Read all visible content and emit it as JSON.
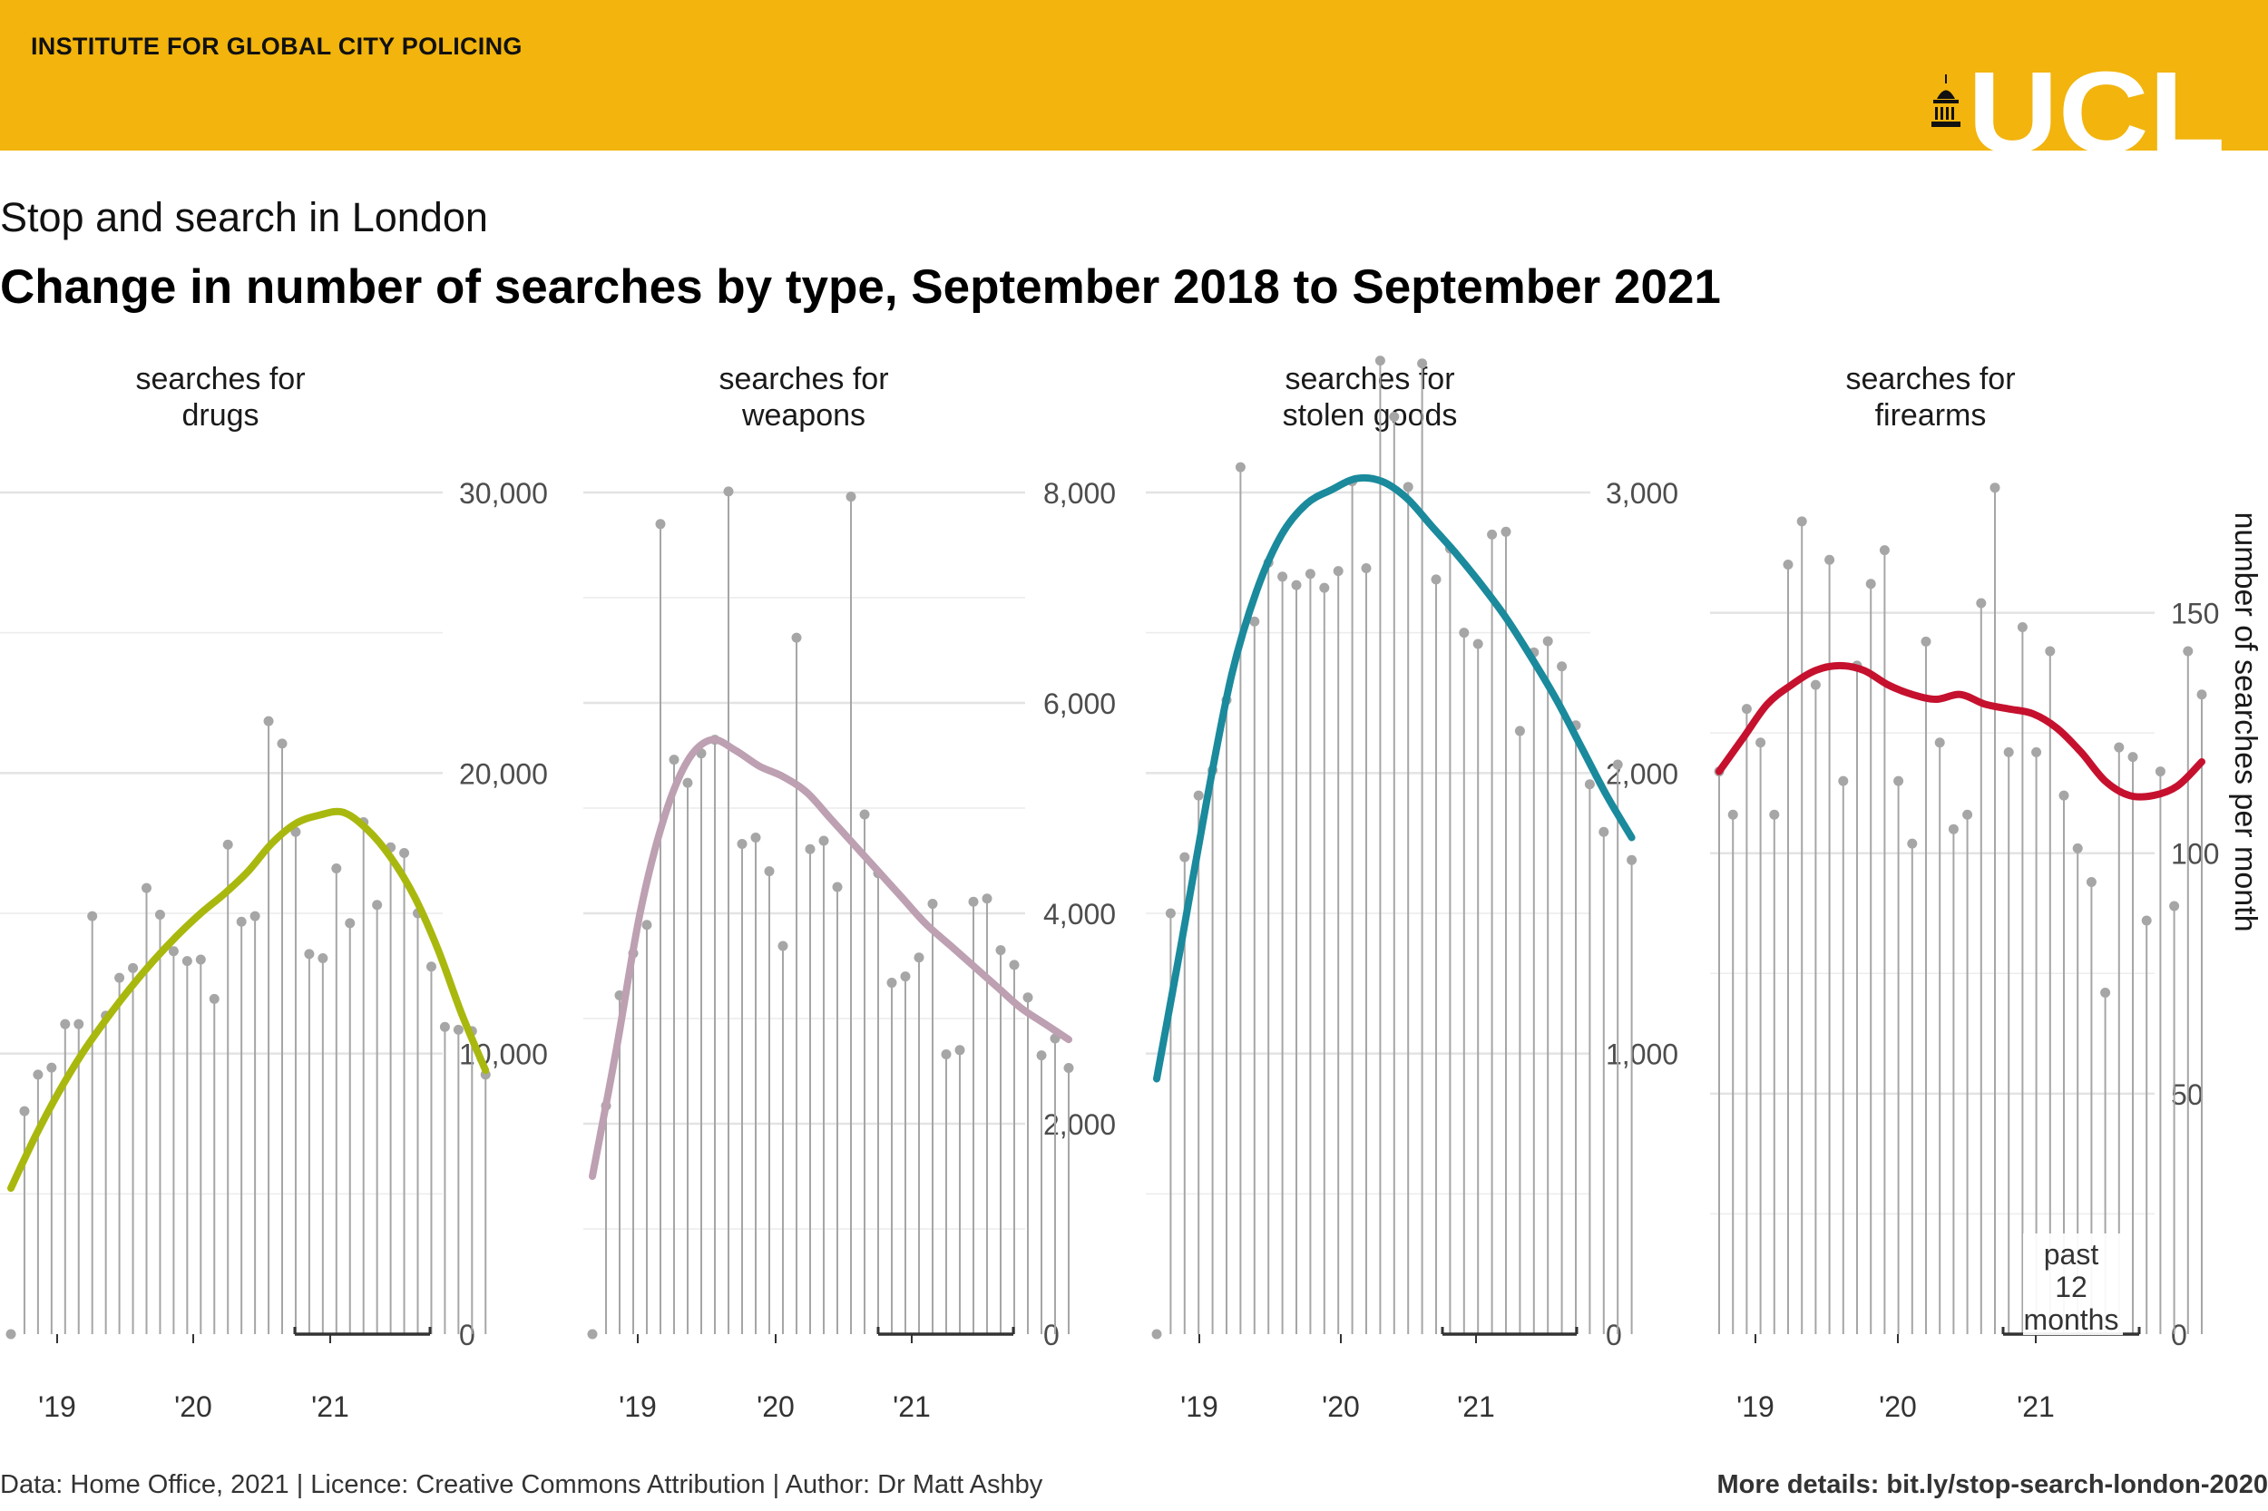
{
  "header": {
    "organisation": "INSTITUTE FOR GLOBAL CITY POLICING",
    "logo_text": "UCL",
    "band_color": "#f2b40d"
  },
  "subtitle": "Stop and search in London",
  "title": "Change in number of searches by type, September 2018 to September 2021",
  "chart_data": [
    {
      "type": "line",
      "panel_title": [
        "searches for",
        "drugs"
      ],
      "x_ticks": [
        "'19",
        "'20",
        "'21"
      ],
      "y_ticks": [
        "0",
        "10,000",
        "20,000",
        "30,000"
      ],
      "y_tick_values": [
        0,
        10000,
        20000,
        30000
      ],
      "ylim": [
        0,
        30000
      ],
      "y_grid_minor": [
        5000,
        15000,
        25000
      ],
      "monthly_values": [
        0,
        7950,
        9250,
        9500,
        11050,
        11050,
        14900,
        11350,
        12700,
        13050,
        15900,
        14950,
        13650,
        13300,
        13350,
        11950,
        17450,
        14700,
        14900,
        21850,
        21050,
        17900,
        13550,
        13400,
        16600,
        14650,
        18250,
        15300,
        17350,
        17150,
        15000,
        13100,
        10950,
        10850,
        10800,
        9250
      ],
      "trend": [
        5200,
        7000,
        8600,
        10000,
        11200,
        12300,
        13300,
        14200,
        15000,
        15700,
        16500,
        17500,
        18200,
        18500,
        18600,
        18000,
        17000,
        15600,
        13700,
        11400,
        9400
      ],
      "trend_color": "#a9b80e",
      "marker_color": "#a6a6a6"
    },
    {
      "type": "line",
      "panel_title": [
        "searches for",
        "weapons"
      ],
      "x_ticks": [
        "'19",
        "'20",
        "'21"
      ],
      "y_ticks": [
        "0",
        "2,000",
        "4,000",
        "6,000",
        "8,000"
      ],
      "y_tick_values": [
        0,
        2000,
        4000,
        6000,
        8000
      ],
      "ylim": [
        0,
        8000
      ],
      "y_grid_minor": [
        1000,
        3000,
        5000,
        7000
      ],
      "monthly_values": [
        0,
        2170,
        3220,
        3620,
        3890,
        7700,
        5460,
        5240,
        5520,
        5650,
        8010,
        4660,
        4720,
        4400,
        3690,
        6620,
        4610,
        4690,
        4250,
        7960,
        4940,
        4380,
        3340,
        3400,
        3580,
        4090,
        2660,
        2700,
        4110,
        4140,
        3650,
        3510,
        3200,
        2650,
        2810,
        2530
      ],
      "trend": [
        1500,
        2700,
        4000,
        4900,
        5450,
        5650,
        5550,
        5400,
        5300,
        5150,
        4900,
        4650,
        4400,
        4150,
        3900,
        3700,
        3500,
        3300,
        3100,
        2950,
        2800
      ],
      "trend_color": "#bda0b1",
      "marker_color": "#a6a6a6"
    },
    {
      "type": "line",
      "panel_title": [
        "searches for",
        "stolen goods"
      ],
      "x_ticks": [
        "'19",
        "'20",
        "'21"
      ],
      "y_ticks": [
        "0",
        "1,000",
        "2,000",
        "3,000"
      ],
      "y_tick_values": [
        0,
        1000,
        2000,
        3000
      ],
      "ylim": [
        0,
        3000
      ],
      "y_grid_minor": [
        500,
        1500,
        2500
      ],
      "monthly_values": [
        0,
        1500,
        1700,
        1920,
        2010,
        2260,
        3090,
        2540,
        2750,
        2700,
        2670,
        2710,
        2660,
        2720,
        3040,
        2730,
        3470,
        3270,
        3020,
        3460,
        2690,
        2800,
        2500,
        2460,
        2850,
        2860,
        2150,
        2430,
        2470,
        2380,
        2170,
        1960,
        1790,
        2030,
        1690
      ],
      "trend": [
        910,
        1400,
        1900,
        2350,
        2650,
        2850,
        2960,
        3010,
        3050,
        3040,
        2980,
        2880,
        2780,
        2670,
        2550,
        2410,
        2260,
        2090,
        1920,
        1770
      ],
      "trend_color": "#1a8a9c",
      "marker_color": "#a6a6a6"
    },
    {
      "type": "line",
      "panel_title": [
        "searches for",
        "firearms"
      ],
      "x_ticks": [
        "'19",
        "'20",
        "'21"
      ],
      "y_ticks": [
        "0",
        "50",
        "100",
        "150"
      ],
      "y_tick_values": [
        0,
        50,
        100,
        150
      ],
      "ylim": [
        0,
        175
      ],
      "y_grid_minor": [
        25,
        75,
        125
      ],
      "ylabel": "number of searches per month",
      "annotation": [
        "past",
        "12",
        "months"
      ],
      "monthly_values": [
        117,
        108,
        130,
        123,
        108,
        160,
        169,
        135,
        161,
        115,
        139,
        156,
        163,
        115,
        102,
        144,
        123,
        105,
        108,
        152,
        176,
        121,
        147,
        121,
        142,
        112,
        101,
        94,
        71,
        122,
        120,
        86,
        117,
        89,
        142,
        133
      ],
      "trend": [
        117,
        124,
        131,
        135,
        138,
        139,
        138,
        135,
        133,
        132,
        133,
        131,
        130,
        129,
        126,
        121,
        115,
        112,
        112,
        114,
        119
      ],
      "trend_color": "#c5112e",
      "marker_color": "#a6a6a6"
    }
  ],
  "footer": {
    "left": "Data: Home Office, 2021 | Licence: Creative Commons Attribution | Author: Dr Matt Ashby",
    "right": "More details: bit.ly/stop-search-london-2020"
  }
}
